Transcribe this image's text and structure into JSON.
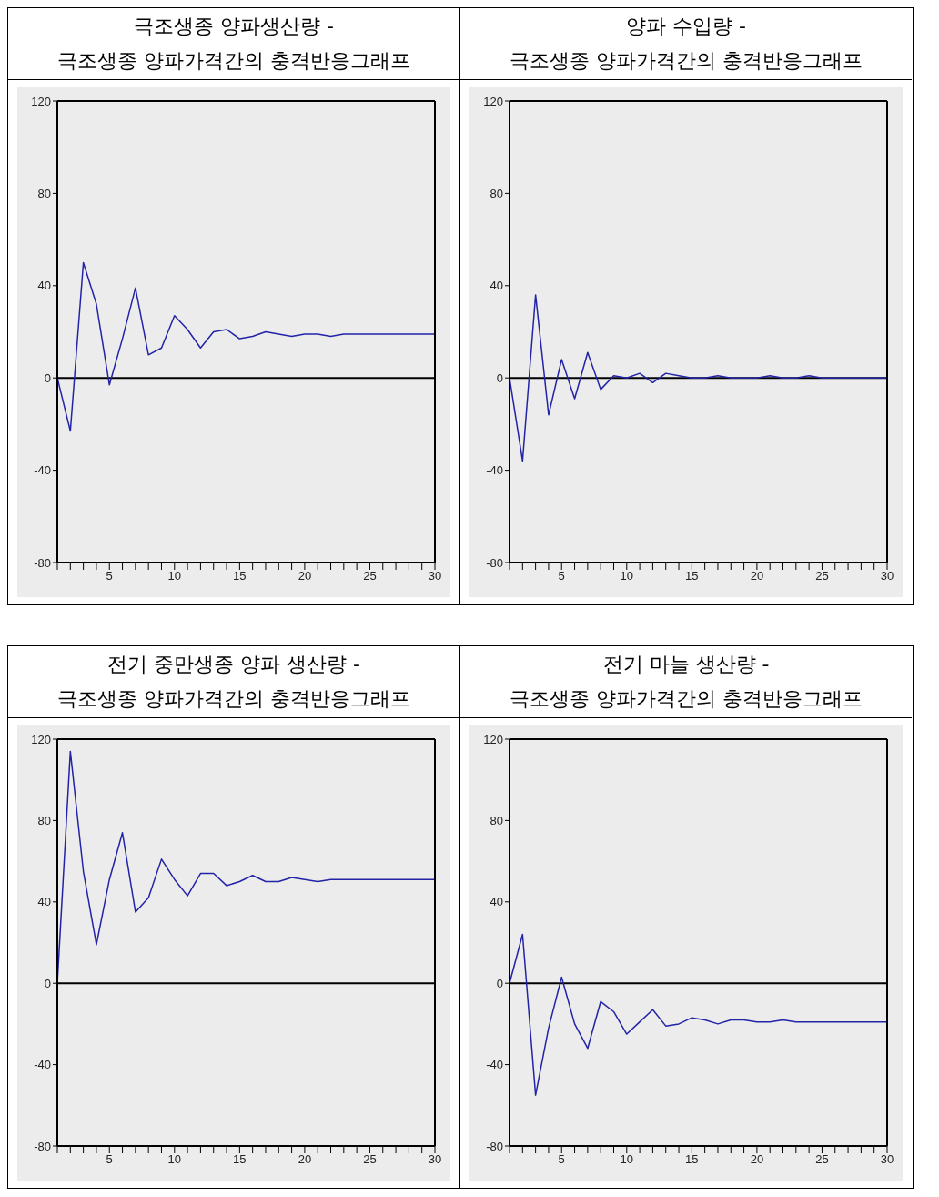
{
  "chart_data": [
    {
      "type": "line",
      "title": "극조생종 양파생산량 -\n극조생종 양파가격간의 충격반응그래프",
      "x": [
        1,
        2,
        3,
        4,
        5,
        6,
        7,
        8,
        9,
        10,
        11,
        12,
        13,
        14,
        15,
        16,
        17,
        18,
        19,
        20,
        21,
        22,
        23,
        24,
        25,
        26,
        27,
        28,
        29,
        30
      ],
      "series": [
        {
          "color": "#2323a8",
          "values": [
            0,
            -23,
            50,
            32,
            -3,
            17,
            39,
            10,
            13,
            27,
            21,
            13,
            20,
            21,
            17,
            18,
            20,
            19,
            18,
            19,
            19,
            18,
            19,
            19,
            19,
            19,
            19,
            19,
            19,
            19
          ]
        }
      ],
      "xlim": [
        1,
        30
      ],
      "xticks": [
        {
          "value": 1,
          "label": null
        },
        {
          "value": 2,
          "label": null
        },
        {
          "value": 3,
          "label": null
        },
        {
          "value": 4,
          "label": null
        },
        5,
        {
          "value": 6,
          "label": null
        },
        {
          "value": 7,
          "label": null
        },
        {
          "value": 8,
          "label": null
        },
        {
          "value": 9,
          "label": null
        },
        10,
        {
          "value": 11,
          "label": null
        },
        {
          "value": 12,
          "label": null
        },
        {
          "value": 13,
          "label": null
        },
        {
          "value": 14,
          "label": null
        },
        15,
        {
          "value": 16,
          "label": null
        },
        {
          "value": 17,
          "label": null
        },
        {
          "value": 18,
          "label": null
        },
        {
          "value": 19,
          "label": null
        },
        20,
        {
          "value": 21,
          "label": null
        },
        {
          "value": 22,
          "label": null
        },
        {
          "value": 23,
          "label": null
        },
        {
          "value": 24,
          "label": null
        },
        25,
        {
          "value": 26,
          "label": null
        },
        {
          "value": 27,
          "label": null
        },
        {
          "value": 28,
          "label": null
        },
        {
          "value": 29,
          "label": null
        },
        30
      ],
      "ylim": [
        -80,
        120
      ],
      "yticks": [
        -80,
        -40,
        0,
        40,
        80,
        120
      ],
      "ref_lines": [
        {
          "axis": "y",
          "value": 0,
          "color": "#000000"
        }
      ],
      "marker": "none"
    },
    {
      "type": "line",
      "title": "양파 수입량 -\n극조생종 양파가격간의 충격반응그래프",
      "x": [
        1,
        2,
        3,
        4,
        5,
        6,
        7,
        8,
        9,
        10,
        11,
        12,
        13,
        14,
        15,
        16,
        17,
        18,
        19,
        20,
        21,
        22,
        23,
        24,
        25,
        26,
        27,
        28,
        29,
        30
      ],
      "series": [
        {
          "color": "#2323a8",
          "values": [
            0,
            -36,
            36,
            -16,
            8,
            -9,
            11,
            -5,
            1,
            0,
            2,
            -2,
            2,
            1,
            0,
            0,
            1,
            0,
            0,
            0,
            1,
            0,
            0,
            1,
            0,
            0,
            0,
            0,
            0,
            0
          ]
        }
      ],
      "xlim": [
        1,
        30
      ],
      "xticks": [
        {
          "value": 1,
          "label": null
        },
        {
          "value": 2,
          "label": null
        },
        {
          "value": 3,
          "label": null
        },
        {
          "value": 4,
          "label": null
        },
        5,
        {
          "value": 6,
          "label": null
        },
        {
          "value": 7,
          "label": null
        },
        {
          "value": 8,
          "label": null
        },
        {
          "value": 9,
          "label": null
        },
        10,
        {
          "value": 11,
          "label": null
        },
        {
          "value": 12,
          "label": null
        },
        {
          "value": 13,
          "label": null
        },
        {
          "value": 14,
          "label": null
        },
        15,
        {
          "value": 16,
          "label": null
        },
        {
          "value": 17,
          "label": null
        },
        {
          "value": 18,
          "label": null
        },
        {
          "value": 19,
          "label": null
        },
        20,
        {
          "value": 21,
          "label": null
        },
        {
          "value": 22,
          "label": null
        },
        {
          "value": 23,
          "label": null
        },
        {
          "value": 24,
          "label": null
        },
        25,
        {
          "value": 26,
          "label": null
        },
        {
          "value": 27,
          "label": null
        },
        {
          "value": 28,
          "label": null
        },
        {
          "value": 29,
          "label": null
        },
        30
      ],
      "ylim": [
        -80,
        120
      ],
      "yticks": [
        -80,
        -40,
        0,
        40,
        80,
        120
      ],
      "ref_lines": [
        {
          "axis": "y",
          "value": 0,
          "color": "#000000"
        }
      ],
      "marker": "none"
    },
    {
      "type": "line",
      "title": "전기 중만생종 양파 생산량 -\n극조생종 양파가격간의 충격반응그래프",
      "x": [
        1,
        2,
        3,
        4,
        5,
        6,
        7,
        8,
        9,
        10,
        11,
        12,
        13,
        14,
        15,
        16,
        17,
        18,
        19,
        20,
        21,
        22,
        23,
        24,
        25,
        26,
        27,
        28,
        29,
        30
      ],
      "series": [
        {
          "color": "#2323a8",
          "values": [
            0,
            114,
            55,
            19,
            51,
            74,
            35,
            42,
            61,
            51,
            43,
            54,
            54,
            48,
            50,
            53,
            50,
            50,
            52,
            51,
            50,
            51,
            51,
            51,
            51,
            51,
            51,
            51,
            51,
            51
          ]
        }
      ],
      "xlim": [
        1,
        30
      ],
      "xticks": [
        {
          "value": 1,
          "label": null
        },
        {
          "value": 2,
          "label": null
        },
        {
          "value": 3,
          "label": null
        },
        {
          "value": 4,
          "label": null
        },
        5,
        {
          "value": 6,
          "label": null
        },
        {
          "value": 7,
          "label": null
        },
        {
          "value": 8,
          "label": null
        },
        {
          "value": 9,
          "label": null
        },
        10,
        {
          "value": 11,
          "label": null
        },
        {
          "value": 12,
          "label": null
        },
        {
          "value": 13,
          "label": null
        },
        {
          "value": 14,
          "label": null
        },
        15,
        {
          "value": 16,
          "label": null
        },
        {
          "value": 17,
          "label": null
        },
        {
          "value": 18,
          "label": null
        },
        {
          "value": 19,
          "label": null
        },
        20,
        {
          "value": 21,
          "label": null
        },
        {
          "value": 22,
          "label": null
        },
        {
          "value": 23,
          "label": null
        },
        {
          "value": 24,
          "label": null
        },
        25,
        {
          "value": 26,
          "label": null
        },
        {
          "value": 27,
          "label": null
        },
        {
          "value": 28,
          "label": null
        },
        {
          "value": 29,
          "label": null
        },
        30
      ],
      "ylim": [
        -80,
        120
      ],
      "yticks": [
        -80,
        -40,
        0,
        40,
        80,
        120
      ],
      "ref_lines": [
        {
          "axis": "y",
          "value": 0,
          "color": "#000000"
        }
      ],
      "marker": "none"
    },
    {
      "type": "line",
      "title": "전기 마늘 생산량 -\n극조생종 양파가격간의 충격반응그래프",
      "x": [
        1,
        2,
        3,
        4,
        5,
        6,
        7,
        8,
        9,
        10,
        11,
        12,
        13,
        14,
        15,
        16,
        17,
        18,
        19,
        20,
        21,
        22,
        23,
        24,
        25,
        26,
        27,
        28,
        29,
        30
      ],
      "series": [
        {
          "color": "#2323a8",
          "values": [
            0,
            24,
            -55,
            -22,
            3,
            -20,
            -32,
            -9,
            -14,
            -25,
            -19,
            -13,
            -21,
            -20,
            -17,
            -18,
            -20,
            -18,
            -18,
            -19,
            -19,
            -18,
            -19,
            -19,
            -19,
            -19,
            -19,
            -19,
            -19,
            -19
          ]
        }
      ],
      "xlim": [
        1,
        30
      ],
      "xticks": [
        {
          "value": 1,
          "label": null
        },
        {
          "value": 2,
          "label": null
        },
        {
          "value": 3,
          "label": null
        },
        {
          "value": 4,
          "label": null
        },
        5,
        {
          "value": 6,
          "label": null
        },
        {
          "value": 7,
          "label": null
        },
        {
          "value": 8,
          "label": null
        },
        {
          "value": 9,
          "label": null
        },
        10,
        {
          "value": 11,
          "label": null
        },
        {
          "value": 12,
          "label": null
        },
        {
          "value": 13,
          "label": null
        },
        {
          "value": 14,
          "label": null
        },
        15,
        {
          "value": 16,
          "label": null
        },
        {
          "value": 17,
          "label": null
        },
        {
          "value": 18,
          "label": null
        },
        {
          "value": 19,
          "label": null
        },
        20,
        {
          "value": 21,
          "label": null
        },
        {
          "value": 22,
          "label": null
        },
        {
          "value": 23,
          "label": null
        },
        {
          "value": 24,
          "label": null
        },
        25,
        {
          "value": 26,
          "label": null
        },
        {
          "value": 27,
          "label": null
        },
        {
          "value": 28,
          "label": null
        },
        {
          "value": 29,
          "label": null
        },
        30
      ],
      "ylim": [
        -80,
        120
      ],
      "yticks": [
        -80,
        -40,
        0,
        40,
        80,
        120
      ],
      "ref_lines": [
        {
          "axis": "y",
          "value": 0,
          "color": "#000000"
        }
      ],
      "marker": "none"
    }
  ]
}
